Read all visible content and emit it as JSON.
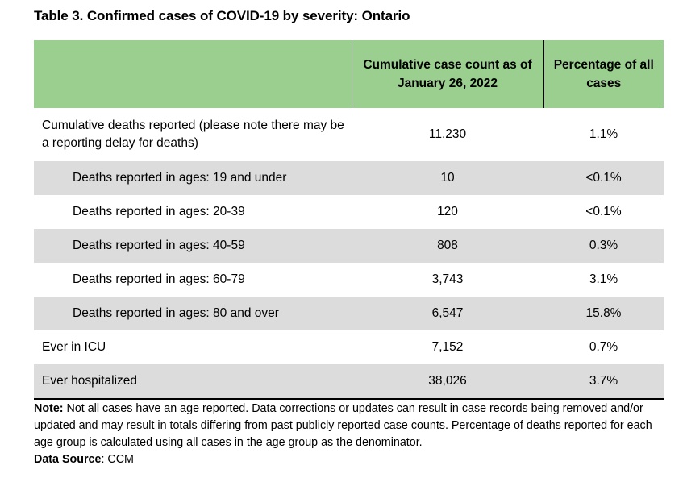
{
  "title": "Table 3. Confirmed cases of COVID-19 by severity: Ontario",
  "header": {
    "col1": "",
    "col2": "Cumulative case count as of January 26, 2022",
    "col3": "Percentage of all cases"
  },
  "rows": [
    {
      "label": "Cumulative deaths reported (please note there may be a reporting delay for deaths)",
      "count": "11,230",
      "pct": "1.1%"
    },
    {
      "label": "Deaths reported in ages: 19 and under",
      "count": "10",
      "pct": "<0.1%"
    },
    {
      "label": "Deaths reported in ages: 20-39",
      "count": "120",
      "pct": "<0.1%"
    },
    {
      "label": "Deaths reported in ages: 40-59",
      "count": "808",
      "pct": "0.3%"
    },
    {
      "label": "Deaths reported in ages: 60-79",
      "count": "3,743",
      "pct": "3.1%"
    },
    {
      "label": "Deaths reported in ages: 80 and over",
      "count": "6,547",
      "pct": "15.8%"
    },
    {
      "label": "Ever in ICU",
      "count": "7,152",
      "pct": "0.7%"
    },
    {
      "label": "Ever hospitalized",
      "count": "38,026",
      "pct": "3.7%"
    }
  ],
  "note": {
    "label": "Note:",
    "text": "Not all cases have an age reported. Data corrections or updates can result in case records being removed and/or updated and may result in totals differing from past publicly reported case counts. Percentage of deaths reported for each age group is calculated using all cases in the age group as the denominator."
  },
  "source": {
    "label": "Data Source",
    "text": ": CCM"
  },
  "colors": {
    "header_bg": "#9bcf8f",
    "shade_bg": "#dcdcdc"
  }
}
